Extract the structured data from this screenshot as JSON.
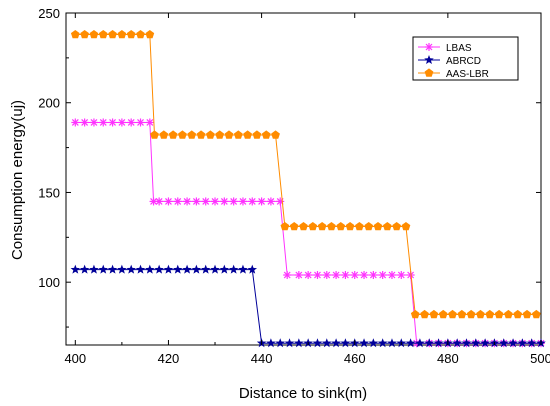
{
  "chart_data": {
    "type": "line",
    "title": "",
    "xlabel": "Distance to sink(m)",
    "ylabel": "Consumption energy(uj)",
    "xlim": [
      398,
      500
    ],
    "ylim": [
      65,
      250
    ],
    "x_ticks": [
      400,
      420,
      440,
      460,
      480,
      500
    ],
    "y_ticks": [
      100,
      150,
      200,
      250
    ],
    "grid": false,
    "legend_position": "top-right",
    "series": [
      {
        "name": "LBAS",
        "color": "#ff33ff",
        "marker": "asterisk",
        "points": [
          [
            400,
            189
          ],
          [
            402,
            189
          ],
          [
            404,
            189
          ],
          [
            406,
            189
          ],
          [
            408,
            189
          ],
          [
            410,
            189
          ],
          [
            412,
            189
          ],
          [
            414,
            189
          ],
          [
            416,
            189
          ],
          [
            416.8,
            145
          ],
          [
            418,
            145
          ],
          [
            420,
            145
          ],
          [
            422,
            145
          ],
          [
            424,
            145
          ],
          [
            426,
            145
          ],
          [
            428,
            145
          ],
          [
            430,
            145
          ],
          [
            432,
            145
          ],
          [
            434,
            145
          ],
          [
            436,
            145
          ],
          [
            438,
            145
          ],
          [
            440,
            145
          ],
          [
            442,
            145
          ],
          [
            444,
            145
          ],
          [
            445.5,
            104
          ],
          [
            448,
            104
          ],
          [
            450,
            104
          ],
          [
            452,
            104
          ],
          [
            454,
            104
          ],
          [
            456,
            104
          ],
          [
            458,
            104
          ],
          [
            460,
            104
          ],
          [
            462,
            104
          ],
          [
            464,
            104
          ],
          [
            466,
            104
          ],
          [
            468,
            104
          ],
          [
            470,
            104
          ],
          [
            472,
            104
          ],
          [
            473.3,
            66
          ],
          [
            476,
            66
          ],
          [
            478,
            66
          ],
          [
            480,
            66
          ],
          [
            482,
            66
          ],
          [
            484,
            66
          ],
          [
            486,
            66
          ],
          [
            488,
            66
          ],
          [
            490,
            66
          ],
          [
            492,
            66
          ],
          [
            494,
            66
          ],
          [
            496,
            66
          ],
          [
            498,
            66
          ],
          [
            500,
            66
          ]
        ]
      },
      {
        "name": "ABRCD",
        "color": "#000099",
        "marker": "star",
        "points": [
          [
            400,
            107
          ],
          [
            402,
            107
          ],
          [
            404,
            107
          ],
          [
            406,
            107
          ],
          [
            408,
            107
          ],
          [
            410,
            107
          ],
          [
            412,
            107
          ],
          [
            414,
            107
          ],
          [
            416,
            107
          ],
          [
            418,
            107
          ],
          [
            420,
            107
          ],
          [
            422,
            107
          ],
          [
            424,
            107
          ],
          [
            426,
            107
          ],
          [
            428,
            107
          ],
          [
            430,
            107
          ],
          [
            432,
            107
          ],
          [
            434,
            107
          ],
          [
            436,
            107
          ],
          [
            438,
            107
          ],
          [
            440,
            66
          ],
          [
            442,
            66
          ],
          [
            444,
            66
          ],
          [
            446,
            66
          ],
          [
            448,
            66
          ],
          [
            450,
            66
          ],
          [
            452,
            66
          ],
          [
            454,
            66
          ],
          [
            456,
            66
          ],
          [
            458,
            66
          ],
          [
            460,
            66
          ],
          [
            462,
            66
          ],
          [
            464,
            66
          ],
          [
            466,
            66
          ],
          [
            468,
            66
          ],
          [
            470,
            66
          ],
          [
            472,
            66
          ],
          [
            474,
            66
          ],
          [
            476,
            66
          ],
          [
            478,
            66
          ],
          [
            480,
            66
          ],
          [
            482,
            66
          ],
          [
            484,
            66
          ],
          [
            486,
            66
          ],
          [
            488,
            66
          ],
          [
            490,
            66
          ],
          [
            492,
            66
          ],
          [
            494,
            66
          ],
          [
            496,
            66
          ],
          [
            498,
            66
          ],
          [
            500,
            66
          ]
        ]
      },
      {
        "name": "AAS-LBR",
        "color": "#ff8c00",
        "marker": "pentagon",
        "points": [
          [
            400,
            238
          ],
          [
            402,
            238
          ],
          [
            404,
            238
          ],
          [
            406,
            238
          ],
          [
            408,
            238
          ],
          [
            410,
            238
          ],
          [
            412,
            238
          ],
          [
            414,
            238
          ],
          [
            416,
            238
          ],
          [
            417,
            182
          ],
          [
            419,
            182
          ],
          [
            421,
            182
          ],
          [
            423,
            182
          ],
          [
            425,
            182
          ],
          [
            427,
            182
          ],
          [
            429,
            182
          ],
          [
            431,
            182
          ],
          [
            433,
            182
          ],
          [
            435,
            182
          ],
          [
            437,
            182
          ],
          [
            439,
            182
          ],
          [
            441,
            182
          ],
          [
            443,
            182
          ],
          [
            445,
            131
          ],
          [
            447,
            131
          ],
          [
            449,
            131
          ],
          [
            451,
            131
          ],
          [
            453,
            131
          ],
          [
            455,
            131
          ],
          [
            457,
            131
          ],
          [
            459,
            131
          ],
          [
            461,
            131
          ],
          [
            463,
            131
          ],
          [
            465,
            131
          ],
          [
            467,
            131
          ],
          [
            469,
            131
          ],
          [
            471,
            131
          ],
          [
            473,
            82
          ],
          [
            475,
            82
          ],
          [
            477,
            82
          ],
          [
            479,
            82
          ],
          [
            481,
            82
          ],
          [
            483,
            82
          ],
          [
            485,
            82
          ],
          [
            487,
            82
          ],
          [
            489,
            82
          ],
          [
            491,
            82
          ],
          [
            493,
            82
          ],
          [
            495,
            82
          ],
          [
            497,
            82
          ],
          [
            499,
            82
          ]
        ]
      }
    ]
  }
}
